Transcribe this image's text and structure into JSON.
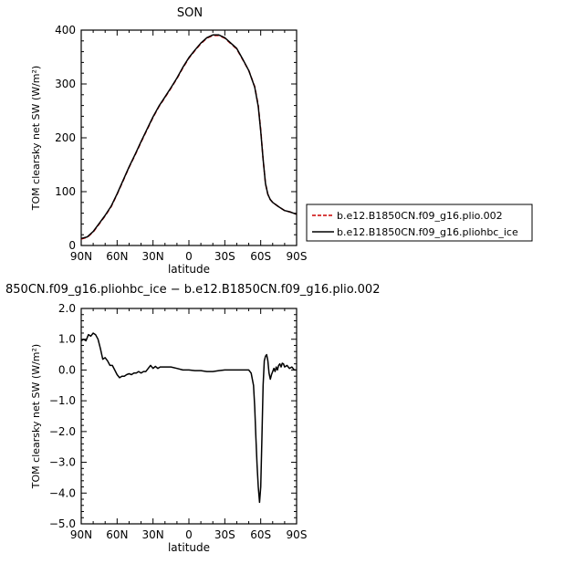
{
  "figure": {
    "top_title": "SON",
    "bottom_title": "850CN.f09_g16.pliohbc_ice − b.e12.B1850CN.f09_g16.plio.002"
  },
  "chart_data": [
    {
      "type": "line",
      "title": "SON",
      "xlabel": "latitude",
      "ylabel": "TOM clearsky net SW (W/m²)",
      "xlim": [
        90,
        -90
      ],
      "ylim": [
        0,
        400
      ],
      "x_ticks": [
        90,
        60,
        30,
        0,
        -30,
        -60,
        -90
      ],
      "x_tick_labels": [
        "90N",
        "60N",
        "30N",
        "0",
        "30S",
        "60S",
        "90S"
      ],
      "y_ticks": [
        0,
        100,
        200,
        300,
        400
      ],
      "y_tick_labels": [
        "0",
        "100",
        "200",
        "300",
        "400"
      ],
      "legend_position": "right",
      "x": [
        90,
        85,
        80,
        75,
        70,
        65,
        60,
        55,
        50,
        45,
        40,
        35,
        30,
        25,
        20,
        15,
        10,
        5,
        0,
        -5,
        -10,
        -15,
        -20,
        -25,
        -30,
        -35,
        -40,
        -45,
        -50,
        -55,
        -58,
        -60,
        -62,
        -64,
        -66,
        -68,
        -70,
        -75,
        -80,
        -85,
        -90
      ],
      "series": [
        {
          "name": "b.e12.B1850CN.f09_g16.plio.002",
          "color": "#cc0000",
          "dash": "dashed",
          "values": [
            12,
            15,
            25,
            40,
            55,
            72,
            95,
            120,
            145,
            168,
            192,
            215,
            238,
            258,
            275,
            292,
            310,
            330,
            348,
            362,
            375,
            385,
            390,
            390,
            385,
            375,
            365,
            345,
            325,
            295,
            260,
            215,
            160,
            115,
            95,
            85,
            80,
            72,
            65,
            62,
            58
          ]
        },
        {
          "name": "b.e12.B1850CN.f09_g16.pliohbc_ice",
          "color": "#000000",
          "dash": "solid",
          "values": [
            13,
            16,
            26,
            41,
            56,
            73,
            96,
            121,
            146,
            169,
            193,
            216,
            239,
            259,
            276,
            293,
            311,
            331,
            349,
            363,
            376,
            386,
            391,
            391,
            386,
            376,
            366,
            346,
            325,
            294,
            258,
            212,
            160,
            115,
            95,
            85,
            80,
            72,
            65,
            62,
            58
          ]
        }
      ]
    },
    {
      "type": "line",
      "title": "850CN.f09_g16.pliohbc_ice − b.e12.B1850CN.f09_g16.plio.002",
      "xlabel": "latitude",
      "ylabel": "TOM clearsky net SW (W/m²)",
      "xlim": [
        90,
        -90
      ],
      "ylim": [
        -5,
        2
      ],
      "x_ticks": [
        90,
        60,
        30,
        0,
        -30,
        -60,
        -90
      ],
      "x_tick_labels": [
        "90N",
        "60N",
        "30N",
        "0",
        "30S",
        "60S",
        "90S"
      ],
      "y_ticks": [
        2,
        1,
        0,
        -1,
        -2,
        -3,
        -4,
        -5
      ],
      "y_tick_labels": [
        "2.0",
        "1.0",
        "0.0",
        "−1.0",
        "−2.0",
        "−3.0",
        "−4.0",
        "−5.0"
      ],
      "x": [
        90,
        88,
        86,
        84,
        82,
        80,
        78,
        76,
        74,
        72,
        70,
        68,
        66,
        64,
        62,
        60,
        58,
        56,
        54,
        52,
        50,
        48,
        46,
        44,
        42,
        40,
        38,
        36,
        34,
        32,
        30,
        28,
        26,
        24,
        22,
        20,
        15,
        10,
        5,
        0,
        -5,
        -10,
        -15,
        -20,
        -25,
        -30,
        -35,
        -40,
        -45,
        -50,
        -52,
        -54,
        -55,
        -56,
        -57,
        -58,
        -59,
        -60,
        -61,
        -62,
        -63,
        -64,
        -65,
        -66,
        -67,
        -68,
        -69,
        -70,
        -71,
        -72,
        -73,
        -74,
        -75,
        -76,
        -77,
        -78,
        -79,
        -80,
        -82,
        -84,
        -86,
        -88,
        -90
      ],
      "series": [
        {
          "name": "",
          "color": "#000000",
          "values": [
            0.95,
            1.0,
            0.95,
            1.15,
            1.1,
            1.2,
            1.15,
            1.0,
            0.7,
            0.35,
            0.4,
            0.3,
            0.15,
            0.15,
            0.0,
            -0.15,
            -0.25,
            -0.2,
            -0.2,
            -0.15,
            -0.12,
            -0.15,
            -0.1,
            -0.1,
            -0.05,
            -0.1,
            -0.05,
            -0.05,
            0.05,
            0.15,
            0.05,
            0.12,
            0.05,
            0.1,
            0.1,
            0.1,
            0.1,
            0.05,
            0.0,
            0.0,
            -0.02,
            -0.02,
            -0.05,
            -0.05,
            -0.02,
            0.0,
            0.0,
            0.0,
            0.0,
            0.0,
            -0.1,
            -0.5,
            -1.2,
            -2.2,
            -3.1,
            -3.8,
            -4.3,
            -3.8,
            -2.2,
            -0.5,
            0.3,
            0.45,
            0.5,
            0.3,
            -0.1,
            -0.3,
            -0.15,
            -0.05,
            0.05,
            -0.05,
            0.1,
            0.0,
            0.15,
            0.2,
            0.1,
            0.22,
            0.2,
            0.1,
            0.15,
            0.05,
            0.1,
            0.0,
            0.0
          ]
        }
      ]
    }
  ]
}
